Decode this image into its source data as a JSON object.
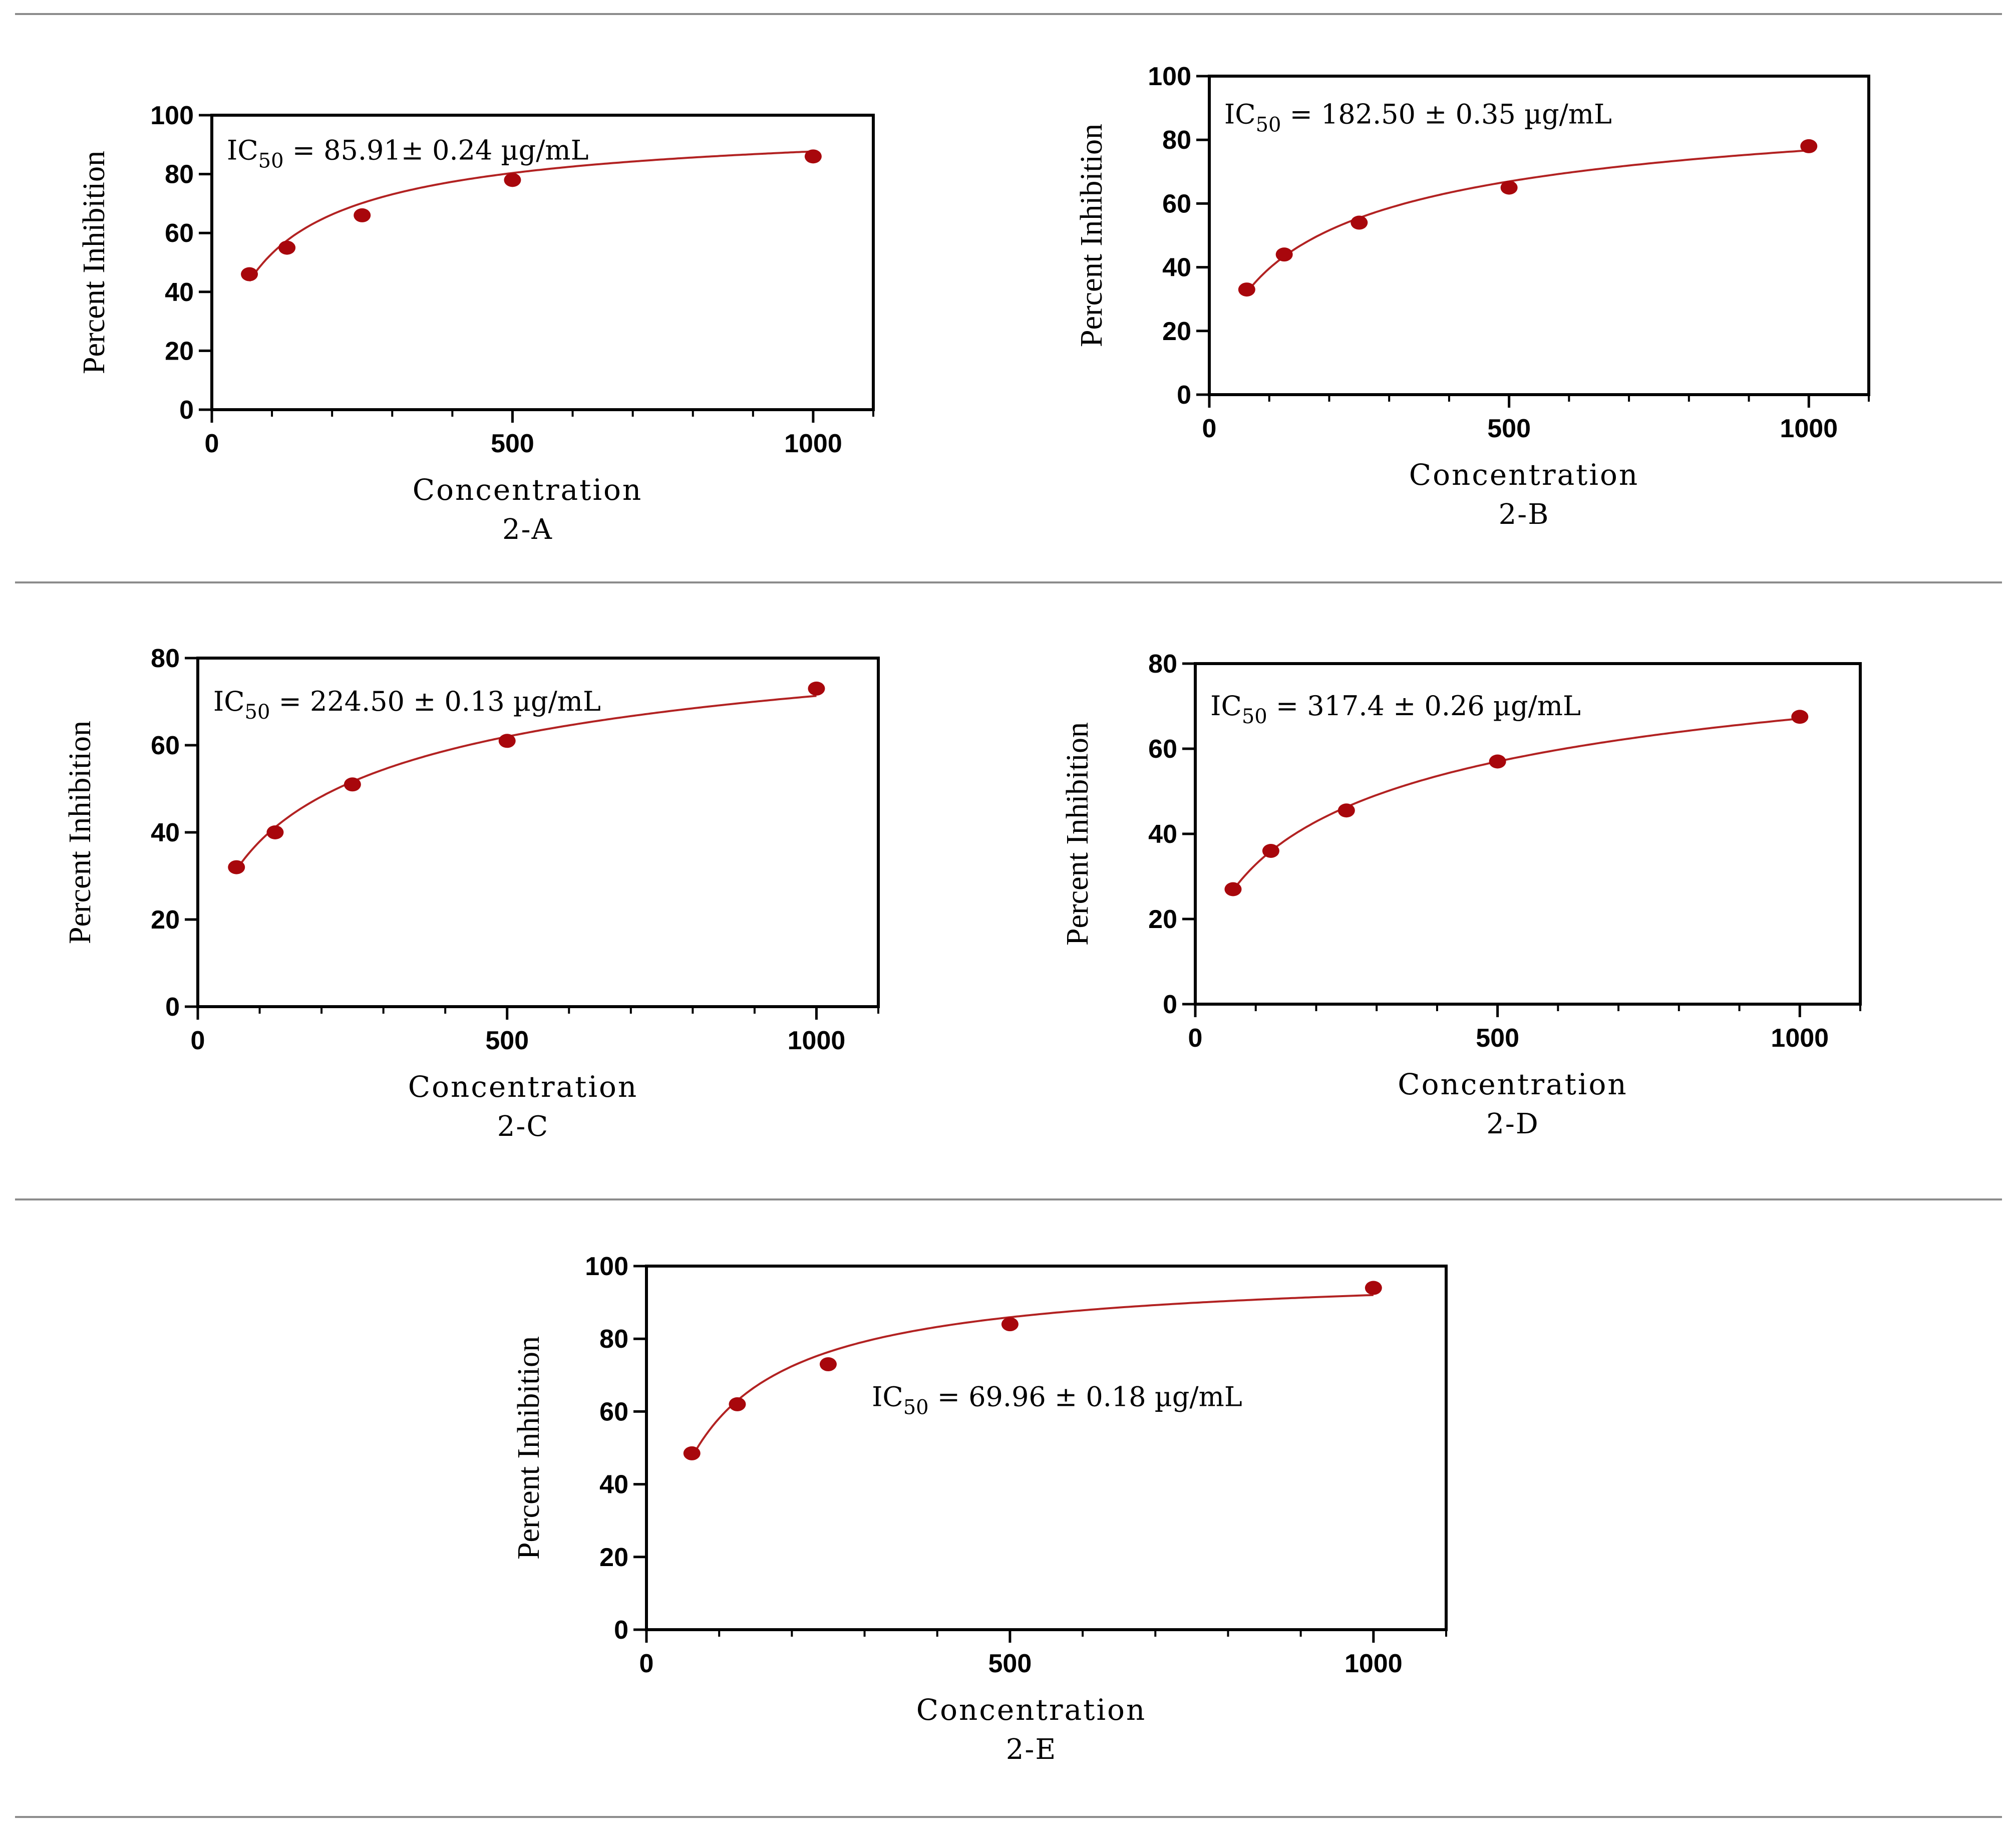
{
  "colors": {
    "marker": "#a8070c",
    "curve": "#b22222",
    "axis": "#000000",
    "divider": "#8c8c8c"
  },
  "chart_data": [
    {
      "id": "2-A",
      "type": "scatter",
      "panel_label": "2-A",
      "xlabel": "Concentration",
      "ylabel": "Percent Inhibition",
      "xlim": [
        0,
        1100
      ],
      "ylim": [
        0,
        100
      ],
      "xticks": [
        0,
        500,
        1000
      ],
      "yticks": [
        0,
        20,
        40,
        60,
        80,
        100
      ],
      "x": [
        62.5,
        125,
        250,
        500,
        1000
      ],
      "y": [
        46,
        55,
        66,
        78,
        86
      ],
      "fit": {
        "bottom": 0,
        "top": 100,
        "ic50": 85.91,
        "hill": 0.8
      },
      "annotation": {
        "prefix": "IC",
        "subscript": "50",
        "text": " = 85.91± 0.24 µg/mL",
        "at": [
          25,
          88
        ]
      }
    },
    {
      "id": "2-B",
      "type": "scatter",
      "panel_label": "2-B",
      "xlabel": "Concentration",
      "ylabel": "Percent Inhibition",
      "xlim": [
        0,
        1100
      ],
      "ylim": [
        0,
        100
      ],
      "xticks": [
        0,
        500,
        1000
      ],
      "yticks": [
        0,
        20,
        40,
        60,
        80,
        100
      ],
      "x": [
        62.5,
        125,
        250,
        500,
        1000
      ],
      "y": [
        33,
        44,
        54,
        65,
        78
      ],
      "fit": {
        "bottom": 0,
        "top": 100,
        "ic50": 182.5,
        "hill": 0.7
      },
      "annotation": {
        "prefix": "IC",
        "subscript": "50",
        "text": " = 182.50 ± 0.35 µg/mL",
        "at": [
          25,
          88
        ]
      }
    },
    {
      "id": "2-C",
      "type": "scatter",
      "panel_label": "2-C",
      "xlabel": "Concentration",
      "ylabel": "Percent Inhibition",
      "xlim": [
        0,
        1100
      ],
      "ylim": [
        0,
        80
      ],
      "xticks": [
        0,
        500,
        1000
      ],
      "yticks": [
        0,
        20,
        40,
        60,
        80
      ],
      "x": [
        62.5,
        125,
        250,
        500,
        1000
      ],
      "y": [
        32,
        40,
        51,
        61,
        73
      ],
      "fit": {
        "bottom": 0,
        "top": 100,
        "ic50": 224.5,
        "hill": 0.61
      },
      "annotation": {
        "prefix": "IC",
        "subscript": "50",
        "text": " = 224.50 ± 0.13 µg/mL",
        "at": [
          25,
          70
        ]
      }
    },
    {
      "id": "2-D",
      "type": "scatter",
      "panel_label": "2-D",
      "xlabel": "Concentration",
      "ylabel": "Percent Inhibition",
      "xlim": [
        0,
        1100
      ],
      "ylim": [
        0,
        80
      ],
      "xticks": [
        0,
        500,
        1000
      ],
      "yticks": [
        0,
        20,
        40,
        60,
        80
      ],
      "x": [
        62.5,
        125,
        250,
        500,
        1000
      ],
      "y": [
        27,
        36,
        45.5,
        57,
        67.5
      ],
      "fit": {
        "bottom": 0,
        "top": 100,
        "ic50": 317.4,
        "hill": 0.62
      },
      "annotation": {
        "prefix": "IC",
        "subscript": "50",
        "text": " = 317.4 ± 0.26 µg/mL",
        "at": [
          25,
          70
        ]
      }
    },
    {
      "id": "2-E",
      "type": "scatter",
      "panel_label": "2-E",
      "xlabel": "Concentration",
      "ylabel": "Percent Inhibition",
      "xlim": [
        0,
        1100
      ],
      "ylim": [
        0,
        100
      ],
      "xticks": [
        0,
        500,
        1000
      ],
      "yticks": [
        0,
        20,
        40,
        60,
        80,
        100
      ],
      "x": [
        62.5,
        125,
        250,
        500,
        1000
      ],
      "y": [
        48.5,
        62,
        73,
        84,
        94
      ],
      "fit": {
        "bottom": 0,
        "top": 100,
        "ic50": 69.96,
        "hill": 0.92
      },
      "annotation": {
        "prefix": "IC",
        "subscript": "50",
        "text": " = 69.96 ± 0.18 µg/mL",
        "at": [
          310,
          64
        ]
      }
    }
  ]
}
